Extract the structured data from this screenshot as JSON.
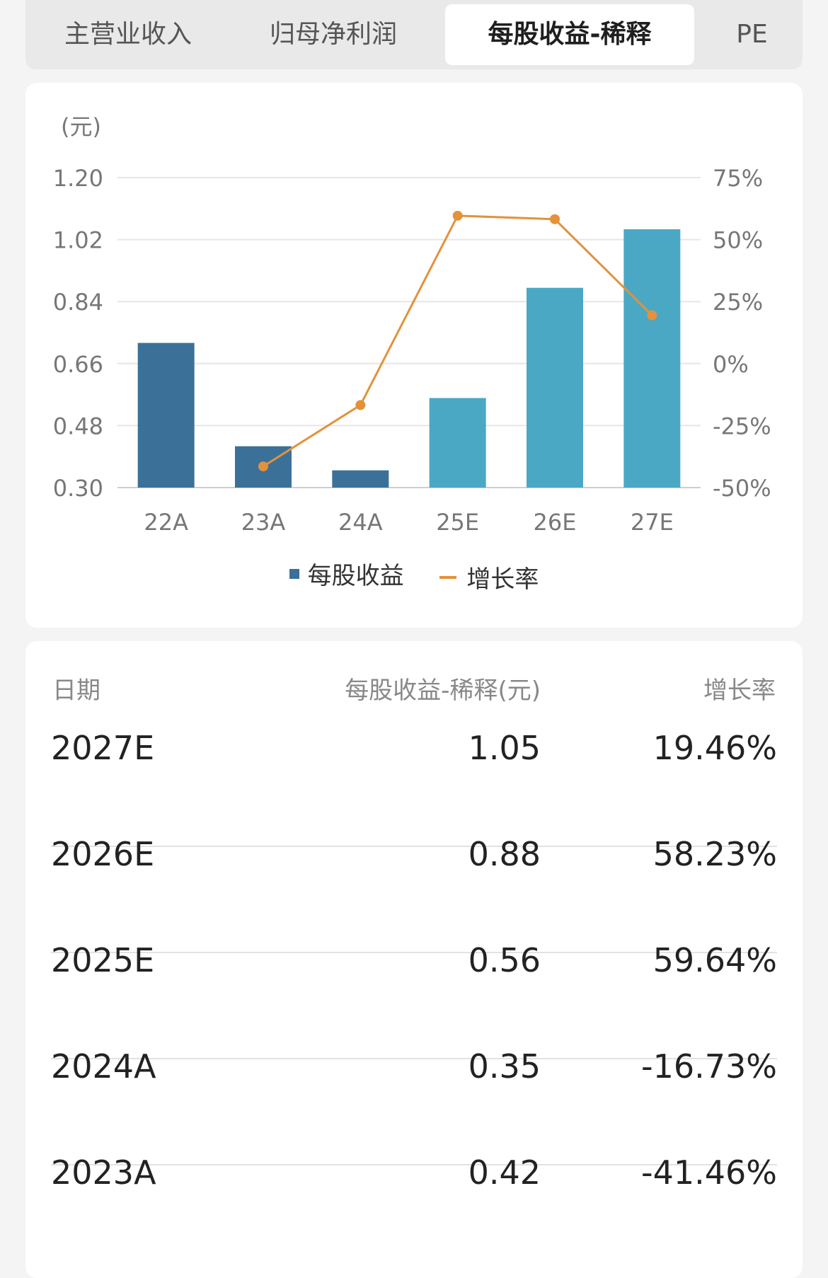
{
  "tabs": [
    {
      "label": "主营业收入",
      "active": false
    },
    {
      "label": "归母净利润",
      "active": false
    },
    {
      "label": "每股收益-稀释",
      "active": true
    },
    {
      "label": "PE",
      "active": false
    }
  ],
  "chart_data": {
    "type": "bar",
    "unit_label": "(元)",
    "categories": [
      "22A",
      "23A",
      "24A",
      "25E",
      "26E",
      "27E"
    ],
    "series": [
      {
        "name": "每股收益",
        "type": "bar",
        "values": [
          0.72,
          0.42,
          0.35,
          0.56,
          0.88,
          1.05
        ],
        "colors": [
          "#3b7199",
          "#3b7199",
          "#3b7199",
          "#4aa8c4",
          "#4aa8c4",
          "#4aa8c4"
        ]
      },
      {
        "name": "增长率",
        "type": "line",
        "axis": "right",
        "values": [
          null,
          -41.46,
          -16.73,
          59.64,
          58.23,
          19.46
        ],
        "color": "#e3923a"
      }
    ],
    "ylim": [
      0.3,
      1.2
    ],
    "y_ticks": [
      "1.20",
      "1.02",
      "0.84",
      "0.66",
      "0.48",
      "0.30"
    ],
    "y2lim": [
      -50,
      75
    ],
    "y2_ticks": [
      "75%",
      "50%",
      "25%",
      "0%",
      "-25%",
      "-50%"
    ],
    "grid": true,
    "legend_position": "bottom"
  },
  "legend": {
    "bar_label": "每股收益",
    "line_label": "增长率"
  },
  "table": {
    "headers": [
      "日期",
      "每股收益-稀释(元)",
      "增长率"
    ],
    "rows": [
      [
        "2027E",
        "1.05",
        "19.46%"
      ],
      [
        "2026E",
        "0.88",
        "58.23%"
      ],
      [
        "2025E",
        "0.56",
        "59.64%"
      ],
      [
        "2024A",
        "0.35",
        "-16.73%"
      ],
      [
        "2023A",
        "0.42",
        "-41.46%"
      ]
    ]
  }
}
